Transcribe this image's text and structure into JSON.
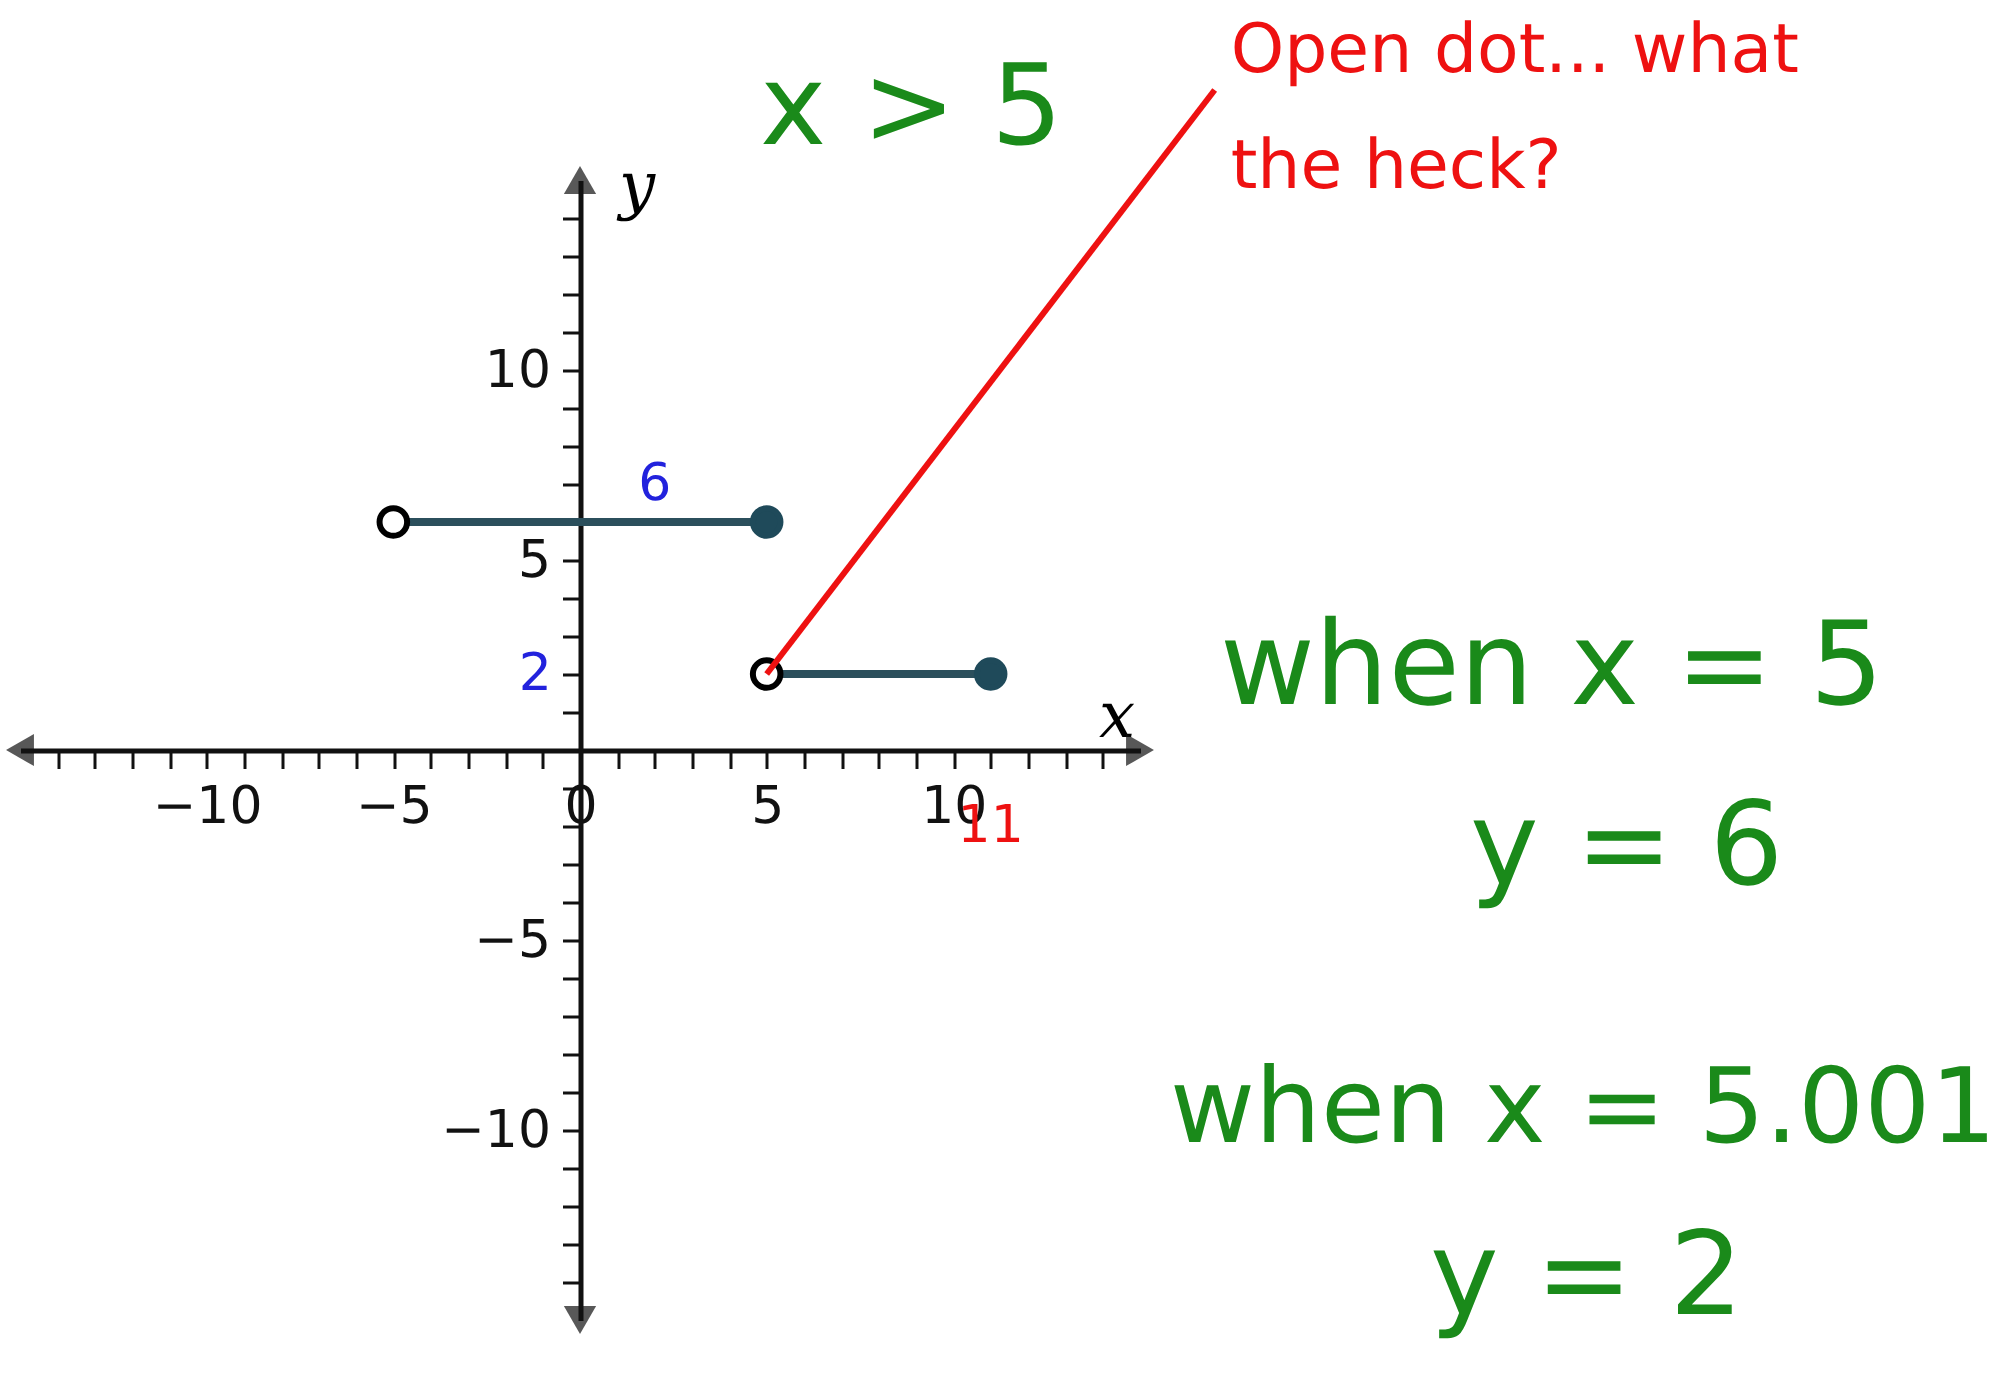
{
  "chart_data": {
    "type": "line",
    "xlabel": "x",
    "ylabel": "y",
    "xlim": [
      -15,
      15
    ],
    "ylim": [
      -15,
      15
    ],
    "xticks": [
      {
        "value": -14,
        "label": null
      },
      {
        "value": -13,
        "label": null
      },
      {
        "value": -12,
        "label": null
      },
      {
        "value": -11,
        "label": null
      },
      {
        "value": -10,
        "label": "−10"
      },
      {
        "value": -9,
        "label": null
      },
      {
        "value": -8,
        "label": null
      },
      {
        "value": -7,
        "label": null
      },
      {
        "value": -6,
        "label": null
      },
      {
        "value": -5,
        "label": "−5"
      },
      {
        "value": -4,
        "label": null
      },
      {
        "value": -3,
        "label": null
      },
      {
        "value": -2,
        "label": null
      },
      {
        "value": -1,
        "label": null
      },
      0,
      {
        "value": 1,
        "label": null
      },
      {
        "value": 2,
        "label": null
      },
      {
        "value": 3,
        "label": null
      },
      {
        "value": 4,
        "label": null
      },
      5,
      {
        "value": 6,
        "label": null
      },
      {
        "value": 7,
        "label": null
      },
      {
        "value": 8,
        "label": null
      },
      {
        "value": 9,
        "label": null
      },
      10,
      {
        "value": 11,
        "label": null
      },
      {
        "value": 12,
        "label": null
      },
      {
        "value": 13,
        "label": null
      },
      {
        "value": 14,
        "label": null
      }
    ],
    "yticks": [
      {
        "value": -14,
        "label": null
      },
      {
        "value": -13,
        "label": null
      },
      {
        "value": -12,
        "label": null
      },
      {
        "value": -11,
        "label": null
      },
      {
        "value": -10,
        "label": "−10"
      },
      {
        "value": -9,
        "label": null
      },
      {
        "value": -8,
        "label": null
      },
      {
        "value": -7,
        "label": null
      },
      {
        "value": -6,
        "label": null
      },
      {
        "value": -5,
        "label": "−5"
      },
      {
        "value": -4,
        "label": null
      },
      {
        "value": -3,
        "label": null
      },
      {
        "value": -2,
        "label": null
      },
      {
        "value": -1,
        "label": null
      },
      {
        "value": 0,
        "label": null
      },
      {
        "value": 1,
        "label": null
      },
      {
        "value": 2,
        "label": null
      },
      {
        "value": 3,
        "label": null
      },
      {
        "value": 4,
        "label": null
      },
      5,
      {
        "value": 6,
        "label": null
      },
      {
        "value": 7,
        "label": null
      },
      {
        "value": 8,
        "label": null
      },
      {
        "value": 9,
        "label": null
      },
      10,
      {
        "value": 11,
        "label": null
      },
      {
        "value": 12,
        "label": null
      },
      {
        "value": 13,
        "label": null
      },
      {
        "value": 14,
        "label": null
      }
    ],
    "series": [
      {
        "color": "#2b4f5c",
        "x": [
          -5,
          5
        ],
        "values": [
          6,
          6
        ]
      },
      {
        "color": "#2b4f5c",
        "x": [
          5,
          11
        ],
        "values": [
          2,
          2
        ]
      },
      {
        "type": "scatter",
        "color": "#000000",
        "x": [
          -5,
          5
        ],
        "values": [
          6,
          2
        ]
      },
      {
        "type": "scatter",
        "color": "#1f4a5a",
        "marker": "circle",
        "x": [
          5,
          11
        ],
        "values": [
          6,
          2
        ]
      }
    ],
    "annotations": [
      "x > 5",
      {
        "text": "Open dot... what the heck?",
        "x": 5,
        "y": 2
      },
      "when x = 5",
      "y = 6",
      "when x = 5.001",
      "y = 2",
      "6",
      "2",
      "11"
    ],
    "grid": false
  }
}
